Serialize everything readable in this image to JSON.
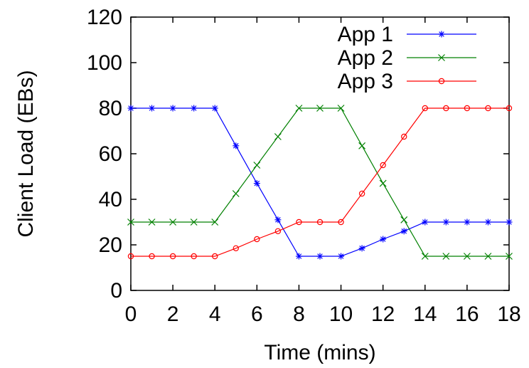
{
  "chart_data": {
    "type": "line",
    "title": "",
    "xlabel": "Time (mins)",
    "ylabel": "Client Load (EBs)",
    "xlim": [
      0,
      18
    ],
    "ylim": [
      0,
      120
    ],
    "xticks": [
      0,
      2,
      4,
      6,
      8,
      10,
      12,
      14,
      16,
      18
    ],
    "yticks": [
      0,
      20,
      40,
      60,
      80,
      100,
      120
    ],
    "grid": false,
    "legend_position": "top-right",
    "x": [
      0,
      1,
      2,
      3,
      4,
      5,
      6,
      7,
      8,
      9,
      10,
      11,
      12,
      13,
      14,
      15,
      16,
      17,
      18
    ],
    "series": [
      {
        "name": "App 1",
        "color": "#0000ff",
        "marker": "asterisk",
        "values": [
          80,
          80,
          80,
          80,
          80,
          63.5,
          47,
          31,
          15,
          15,
          15,
          18.5,
          22.5,
          26,
          30,
          30,
          30,
          30,
          30
        ]
      },
      {
        "name": "App 2",
        "color": "#008000",
        "marker": "x",
        "values": [
          30,
          30,
          30,
          30,
          30,
          42.5,
          55,
          67.5,
          80,
          80,
          80,
          63.5,
          47,
          31,
          15,
          15,
          15,
          15,
          15
        ]
      },
      {
        "name": "App 3",
        "color": "#ff0000",
        "marker": "circle",
        "values": [
          15,
          15,
          15,
          15,
          15,
          18.5,
          22.5,
          26,
          30,
          30,
          30,
          42.5,
          55,
          67.5,
          80,
          80,
          80,
          80,
          80
        ]
      }
    ]
  }
}
